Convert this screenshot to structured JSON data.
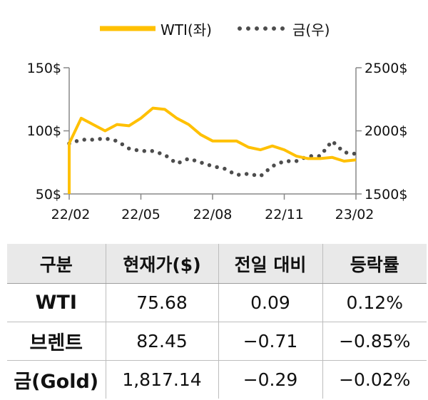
{
  "chart_data": {
    "type": "line",
    "x_ticks": [
      "22/02",
      "22/05",
      "22/08",
      "22/11",
      "23/02"
    ],
    "y_left": {
      "ticks": [
        "150$",
        "100$",
        "50$"
      ],
      "range": [
        50,
        150
      ]
    },
    "y_right": {
      "ticks": [
        "2500$",
        "2000$",
        "1500$"
      ],
      "range": [
        1500,
        2500
      ]
    },
    "legend": {
      "position": "top-center"
    },
    "series": [
      {
        "name": "WTI(좌)",
        "axis": "left",
        "style": "solid",
        "color": "#FFC000",
        "x": [
          0,
          0.5,
          1,
          1.5,
          2,
          2.5,
          3,
          3.5,
          4,
          4.5,
          5,
          5.5,
          6,
          6.5,
          7,
          7.5,
          8,
          8.5,
          9,
          9.5,
          10,
          10.5,
          11,
          11.5,
          12
        ],
        "y": [
          90,
          110,
          105,
          100,
          105,
          104,
          110,
          118,
          117,
          110,
          105,
          97,
          92,
          92,
          92,
          87,
          85,
          88,
          85,
          80,
          78,
          78,
          79,
          76,
          77
        ]
      },
      {
        "name": "금(우)",
        "axis": "right",
        "style": "dotted",
        "color": "#4d4d4d",
        "x": [
          0,
          0.5,
          1,
          1.5,
          2,
          2.5,
          3,
          3.5,
          4,
          4.5,
          5,
          5.5,
          6,
          6.5,
          7,
          7.5,
          8,
          8.5,
          9,
          9.5,
          10,
          10.5,
          11,
          11.5,
          12
        ],
        "y": [
          1900,
          1930,
          1930,
          1940,
          1920,
          1860,
          1840,
          1840,
          1810,
          1740,
          1780,
          1750,
          1720,
          1700,
          1650,
          1660,
          1640,
          1720,
          1760,
          1760,
          1800,
          1800,
          1920,
          1830,
          1817
        ]
      }
    ]
  },
  "table": {
    "headers": [
      "구분",
      "현재가($)",
      "전일 대비",
      "등락률"
    ],
    "rows": [
      {
        "name": "WTI",
        "price": "75.68",
        "change": "0.09",
        "rate": "0.12%"
      },
      {
        "name": "브렌트",
        "price": "82.45",
        "change": "−0.71",
        "rate": "−0.85%"
      },
      {
        "name": "금(Gold)",
        "price": "1,817.14",
        "change": "−0.29",
        "rate": "−0.02%"
      }
    ]
  }
}
